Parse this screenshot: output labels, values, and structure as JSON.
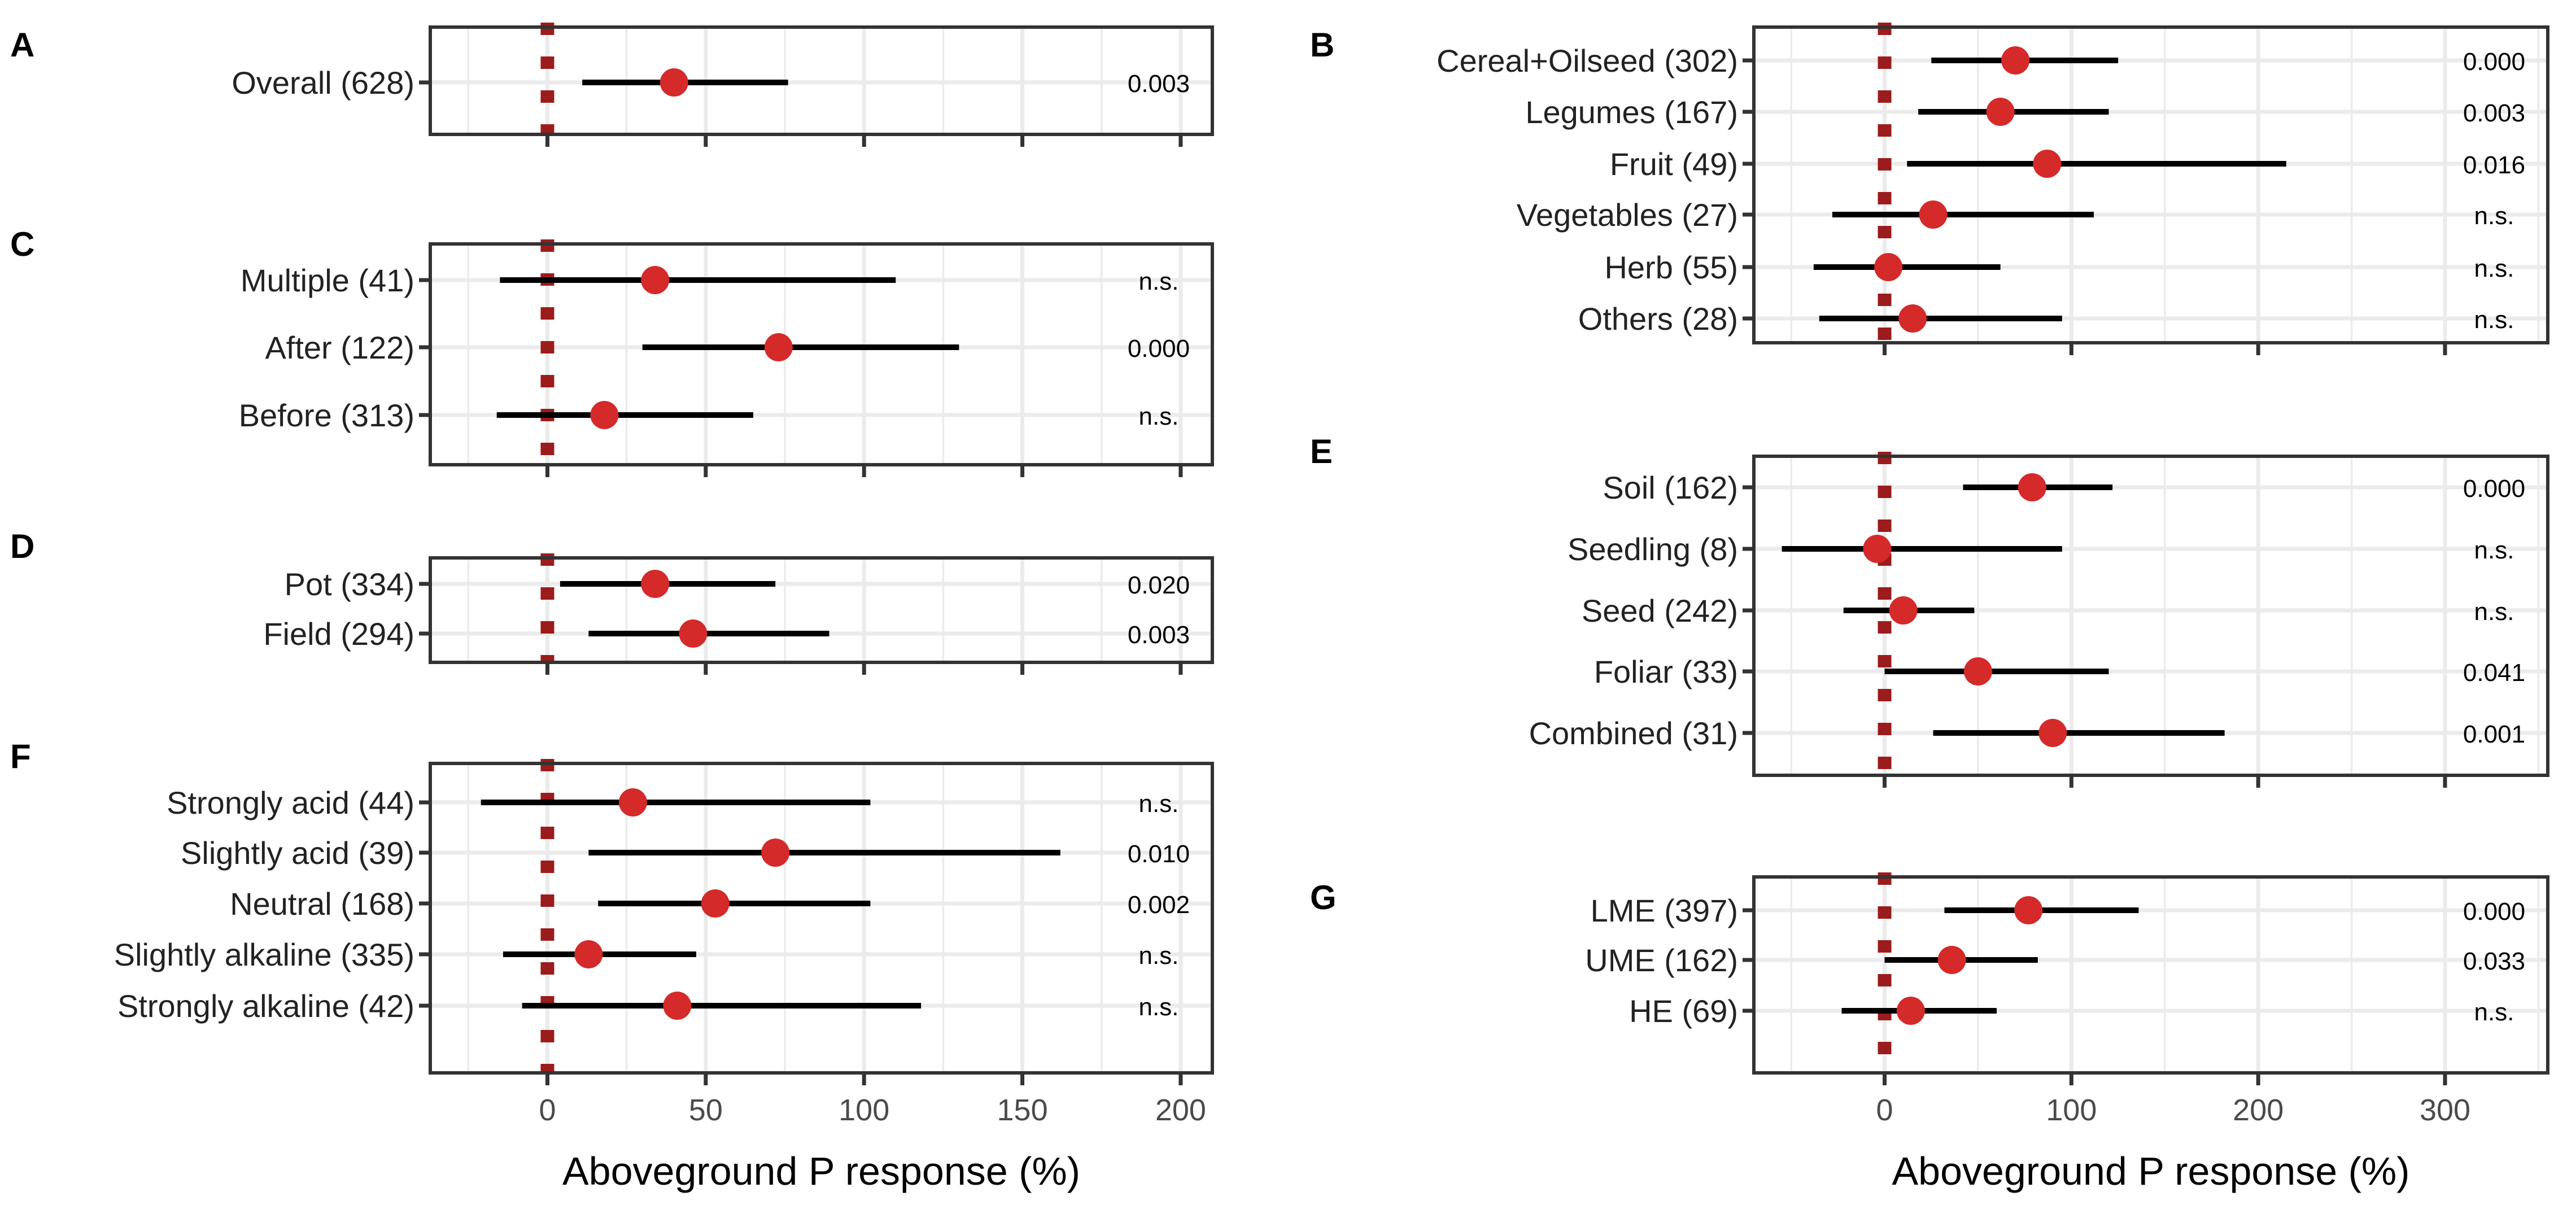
{
  "chart_data": [
    {
      "panel": "A",
      "type": "forest",
      "xlim": [
        -37,
        210
      ],
      "xticks": [
        0,
        50,
        100,
        150,
        200
      ],
      "xlabel": "",
      "rows": [
        {
          "label": "Overall (628)",
          "mean": 40,
          "lo": 11,
          "hi": 76,
          "p": "0.003"
        }
      ]
    },
    {
      "panel": "C",
      "type": "forest",
      "xlim": [
        -37,
        210
      ],
      "xticks": [
        0,
        50,
        100,
        150,
        200
      ],
      "xlabel": "",
      "rows": [
        {
          "label": "Multiple (41)",
          "mean": 34,
          "lo": -15,
          "hi": 110,
          "p": "n.s."
        },
        {
          "label": "After (122)",
          "mean": 73,
          "lo": 30,
          "hi": 130,
          "p": "0.000"
        },
        {
          "label": "Before (313)",
          "mean": 18,
          "lo": -16,
          "hi": 65,
          "p": "n.s."
        }
      ]
    },
    {
      "panel": "D",
      "type": "forest",
      "xlim": [
        -37,
        210
      ],
      "xticks": [
        0,
        50,
        100,
        150,
        200
      ],
      "xlabel": "",
      "rows": [
        {
          "label": "Pot (334)",
          "mean": 34,
          "lo": 4,
          "hi": 72,
          "p": "0.020"
        },
        {
          "label": "Field (294)",
          "mean": 46,
          "lo": 13,
          "hi": 89,
          "p": "0.003"
        }
      ]
    },
    {
      "panel": "F",
      "type": "forest",
      "xlim": [
        -37,
        210
      ],
      "xticks": [
        0,
        50,
        100,
        150,
        200
      ],
      "xlabel": "Aboveground P response (%)",
      "rows": [
        {
          "label": "Strongly acid (44)",
          "mean": 27,
          "lo": -21,
          "hi": 102,
          "p": "n.s."
        },
        {
          "label": "Slightly acid (39)",
          "mean": 72,
          "lo": 13,
          "hi": 162,
          "p": "0.010"
        },
        {
          "label": "Neutral (168)",
          "mean": 53,
          "lo": 16,
          "hi": 102,
          "p": "0.002"
        },
        {
          "label": "Slightly alkaline (335)",
          "mean": 13,
          "lo": -14,
          "hi": 47,
          "p": "n.s."
        },
        {
          "label": "Strongly alkaline (42)",
          "mean": 41,
          "lo": -8,
          "hi": 118,
          "p": "n.s."
        }
      ]
    },
    {
      "panel": "B",
      "type": "forest",
      "xlim": [
        -70,
        355
      ],
      "xticks": [
        0,
        100,
        200,
        300
      ],
      "xlabel": "",
      "rows": [
        {
          "label": "Cereal+Oilseed (302)",
          "mean": 70,
          "lo": 25,
          "hi": 125,
          "p": "0.000"
        },
        {
          "label": "Legumes (167)",
          "mean": 62,
          "lo": 18,
          "hi": 120,
          "p": "0.003"
        },
        {
          "label": "Fruit (49)",
          "mean": 87,
          "lo": 12,
          "hi": 215,
          "p": "0.016"
        },
        {
          "label": "Vegetables (27)",
          "mean": 26,
          "lo": -28,
          "hi": 112,
          "p": "n.s."
        },
        {
          "label": "Herb (55)",
          "mean": 2,
          "lo": -38,
          "hi": 62,
          "p": "n.s."
        },
        {
          "label": "Others (28)",
          "mean": 15,
          "lo": -35,
          "hi": 95,
          "p": "n.s."
        }
      ]
    },
    {
      "panel": "E",
      "type": "forest",
      "xlim": [
        -70,
        355
      ],
      "xticks": [
        0,
        100,
        200,
        300
      ],
      "xlabel": "",
      "rows": [
        {
          "label": "Soil (162)",
          "mean": 79,
          "lo": 42,
          "hi": 122,
          "p": "0.000"
        },
        {
          "label": "Seedling (8)",
          "mean": -4,
          "lo": -55,
          "hi": 95,
          "p": "n.s."
        },
        {
          "label": "Seed (242)",
          "mean": 10,
          "lo": -22,
          "hi": 48,
          "p": "n.s."
        },
        {
          "label": "Foliar (33)",
          "mean": 50,
          "lo": 0,
          "hi": 120,
          "p": "0.041"
        },
        {
          "label": "Combined (31)",
          "mean": 90,
          "lo": 26,
          "hi": 182,
          "p": "0.001"
        }
      ]
    },
    {
      "panel": "G",
      "type": "forest",
      "xlim": [
        -70,
        355
      ],
      "xticks": [
        0,
        100,
        200,
        300
      ],
      "xlabel": "Aboveground P response (%)",
      "rows": [
        {
          "label": "LME (397)",
          "mean": 77,
          "lo": 32,
          "hi": 136,
          "p": "0.000"
        },
        {
          "label": "UME (162)",
          "mean": 36,
          "lo": 0,
          "hi": 82,
          "p": "0.033"
        },
        {
          "label": "HE (69)",
          "mean": 14,
          "lo": -23,
          "hi": 60,
          "p": "n.s."
        }
      ]
    }
  ],
  "colors": {
    "point": "#d42a2a",
    "ci": "#000000",
    "zero_marker": "#9b1c1c",
    "frame": "#333333",
    "grid": "#ebebeb"
  }
}
